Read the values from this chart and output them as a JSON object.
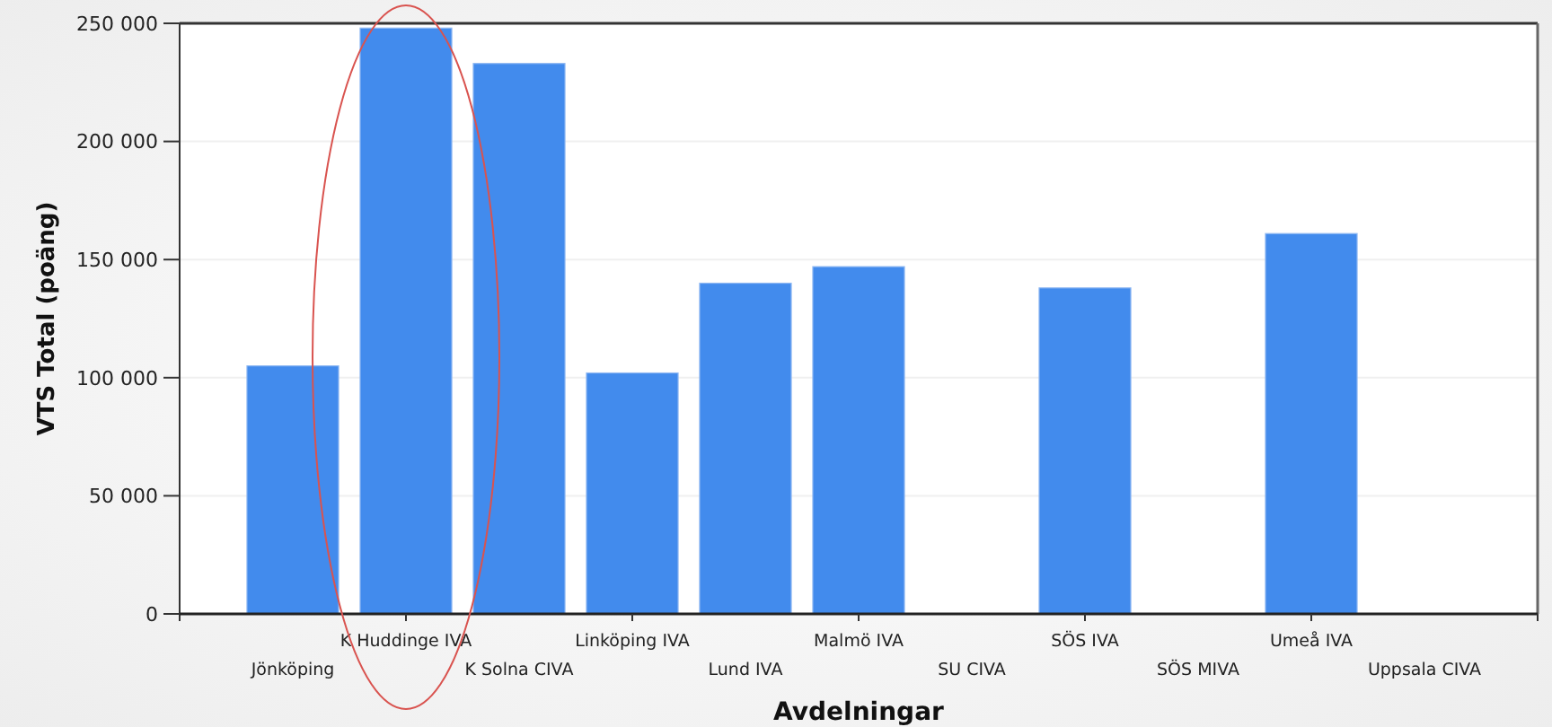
{
  "chart_data": {
    "type": "bar",
    "xlabel": "Avdelningar",
    "ylabel": "VTS Total (poäng)",
    "categories": [
      "Jönköping",
      "K Huddinge IVA",
      "K Solna CIVA",
      "Linköping IVA",
      "Lund IVA",
      "Malmö IVA",
      "SU CIVA",
      "SÖS IVA",
      "SÖS MIVA",
      "Umeå IVA",
      "Uppsala CIVA"
    ],
    "values": [
      105000,
      248000,
      233000,
      102000,
      140000,
      147000,
      null,
      138000,
      null,
      161000,
      null
    ],
    "color": "#428bed",
    "ylim": [
      0,
      250000
    ],
    "yticks": [
      {
        "value": 0,
        "label": "0"
      },
      {
        "value": 50000,
        "label": "50 000"
      },
      {
        "value": 100000,
        "label": "100 000"
      },
      {
        "value": 150000,
        "label": "150 000"
      },
      {
        "value": 200000,
        "label": "200 000"
      },
      {
        "value": 250000,
        "label": "250 000"
      }
    ],
    "grid": "y"
  }
}
